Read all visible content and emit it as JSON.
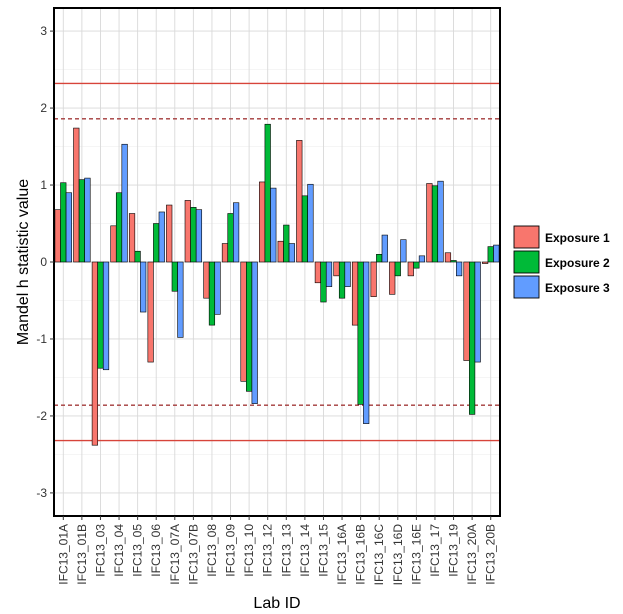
{
  "chart_data": {
    "type": "bar",
    "xlabel": "Lab ID",
    "ylabel": "Mandel h statistic value",
    "ylim": [
      -3.3,
      3.3
    ],
    "yticks": [
      -3,
      -2,
      -1,
      0,
      1,
      2,
      3
    ],
    "grid": true,
    "legend_position": "right",
    "categories": [
      "IFC13_01A",
      "IFC13_01B",
      "IFC13_03",
      "IFC13_04",
      "IFC13_05",
      "IFC13_06",
      "IFC13_07A",
      "IFC13_07B",
      "IFC13_08",
      "IFC13_09",
      "IFC13_10",
      "IFC13_12",
      "IFC13_13",
      "IFC13_14",
      "IFC13_15",
      "IFC13_16A",
      "IFC13_16B",
      "IFC13_16C",
      "IFC13_16D",
      "IFC13_16E",
      "IFC13_17",
      "IFC13_19",
      "IFC13_20A",
      "IFC13_20B"
    ],
    "series": [
      {
        "name": "Exposure 1",
        "color": "#f8766d",
        "values": [
          0.68,
          1.74,
          -2.38,
          0.47,
          0.63,
          -1.3,
          0.74,
          0.8,
          -0.47,
          0.24,
          -1.55,
          1.04,
          0.27,
          1.58,
          -0.27,
          -0.18,
          -0.82,
          -0.45,
          -0.42,
          -0.18,
          1.02,
          0.12,
          -1.28,
          -0.02
        ]
      },
      {
        "name": "Exposure 2",
        "color": "#00ba38",
        "values": [
          1.03,
          1.07,
          -1.38,
          0.9,
          0.14,
          0.5,
          -0.38,
          0.71,
          -0.82,
          0.63,
          -1.68,
          1.79,
          0.48,
          0.86,
          -0.52,
          -0.47,
          -1.85,
          0.1,
          -0.18,
          -0.08,
          0.99,
          0.02,
          -1.98,
          0.2
        ]
      },
      {
        "name": "Exposure 3",
        "color": "#619cff",
        "values": [
          0.9,
          1.09,
          -1.4,
          1.53,
          -0.65,
          0.65,
          -0.98,
          0.68,
          -0.68,
          0.77,
          -1.84,
          0.96,
          0.24,
          1.01,
          -0.32,
          -0.32,
          -2.1,
          0.35,
          0.29,
          0.08,
          1.05,
          -0.18,
          -1.3,
          0.22
        ]
      }
    ],
    "reference_lines": [
      {
        "value": 2.32,
        "style": "solid",
        "color": "#d7443a"
      },
      {
        "value": -2.32,
        "style": "solid",
        "color": "#d7443a"
      },
      {
        "value": 1.86,
        "style": "dashed",
        "color": "#a33a3a"
      },
      {
        "value": -1.86,
        "style": "dashed",
        "color": "#a33a3a"
      }
    ]
  }
}
